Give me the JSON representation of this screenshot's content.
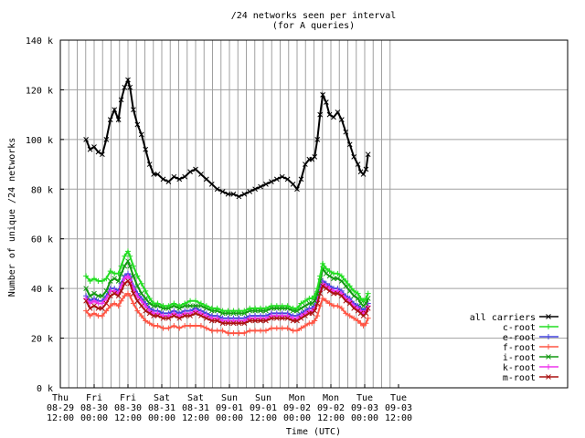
{
  "chart_data": {
    "type": "line",
    "title": "/24 networks seen per interval",
    "subtitle": "(for A queries)",
    "xlabel": "Time (UTC)",
    "ylabel": "Number of unique /24 networks",
    "ylim": [
      0,
      140000
    ],
    "xlim": [
      0,
      7.5
    ],
    "grid": true,
    "legend_position": "bottom-right",
    "y_ticks": [
      {
        "value": 0,
        "label": "0 k"
      },
      {
        "value": 20000,
        "label": "20 k"
      },
      {
        "value": 40000,
        "label": "40 k"
      },
      {
        "value": 60000,
        "label": "60 k"
      },
      {
        "value": 80000,
        "label": "80 k"
      },
      {
        "value": 100000,
        "label": "100 k"
      },
      {
        "value": 120000,
        "label": "120 k"
      },
      {
        "value": 140000,
        "label": "140 k"
      }
    ],
    "x_ticks": [
      {
        "value": 0,
        "lines": [
          "Thu",
          "08-29",
          "12:00"
        ]
      },
      {
        "value": 0.5,
        "lines": [
          "Fri",
          "08-30",
          "00:00"
        ]
      },
      {
        "value": 1,
        "lines": [
          "Fri",
          "08-30",
          "12:00"
        ]
      },
      {
        "value": 1.5,
        "lines": [
          "Sat",
          "08-31",
          "00:00"
        ]
      },
      {
        "value": 2,
        "lines": [
          "Sat",
          "08-31",
          "12:00"
        ]
      },
      {
        "value": 2.5,
        "lines": [
          "Sun",
          "09-01",
          "00:00"
        ]
      },
      {
        "value": 3,
        "lines": [
          "Sun",
          "09-01",
          "12:00"
        ]
      },
      {
        "value": 3.5,
        "lines": [
          "Mon",
          "09-02",
          "00:00"
        ]
      },
      {
        "value": 4,
        "lines": [
          "Mon",
          "09-02",
          "12:00"
        ]
      },
      {
        "value": 4.5,
        "lines": [
          "Tue",
          "09-03",
          "00:00"
        ]
      },
      {
        "value": 5,
        "lines": [
          "Tue",
          "09-03",
          "12:00"
        ]
      }
    ],
    "x": [
      0.38,
      0.44,
      0.5,
      0.56,
      0.62,
      0.68,
      0.74,
      0.8,
      0.86,
      0.9,
      0.95,
      1.0,
      1.03,
      1.08,
      1.14,
      1.2,
      1.26,
      1.32,
      1.38,
      1.44,
      1.52,
      1.6,
      1.68,
      1.76,
      1.84,
      1.92,
      2.0,
      2.08,
      2.16,
      2.24,
      2.32,
      2.4,
      2.48,
      2.56,
      2.64,
      2.72,
      2.8,
      2.88,
      2.96,
      3.04,
      3.12,
      3.2,
      3.28,
      3.36,
      3.44,
      3.5,
      3.56,
      3.62,
      3.68,
      3.72,
      3.76,
      3.8,
      3.84,
      3.88,
      3.93,
      3.98,
      4.04,
      4.1,
      4.16,
      4.22,
      4.28,
      4.34,
      4.4,
      4.44,
      4.48,
      4.52,
      4.55
    ],
    "series": [
      {
        "name": "all carriers",
        "color": "#000000",
        "marker": "cross",
        "values": [
          100000,
          96000,
          97000,
          95000,
          94000,
          100000,
          108000,
          112000,
          108000,
          116000,
          121000,
          124000,
          121000,
          112000,
          106000,
          102000,
          96000,
          90000,
          86000,
          86000,
          84000,
          83000,
          85000,
          84000,
          85000,
          87000,
          88000,
          86000,
          84000,
          82000,
          80000,
          79000,
          78000,
          78000,
          77000,
          78000,
          79000,
          80000,
          81000,
          82000,
          83000,
          84000,
          85000,
          84000,
          82000,
          80000,
          84000,
          90000,
          92000,
          92000,
          93000,
          100000,
          110000,
          118000,
          115000,
          110000,
          109000,
          111000,
          108000,
          103000,
          98000,
          93000,
          90000,
          87000,
          86000,
          88000,
          94000
        ]
      },
      {
        "name": "c-root",
        "color": "#22dd22",
        "marker": "plus",
        "values": [
          45000,
          43000,
          44000,
          43000,
          43000,
          44000,
          47000,
          46000,
          46000,
          49000,
          53000,
          55000,
          53000,
          49000,
          45000,
          42000,
          39000,
          36000,
          34000,
          34000,
          33000,
          33000,
          34000,
          33000,
          34000,
          35000,
          35000,
          34000,
          33000,
          32000,
          32000,
          31000,
          31000,
          31000,
          31000,
          31000,
          32000,
          32000,
          32000,
          32000,
          33000,
          33000,
          33000,
          33000,
          32000,
          32000,
          34000,
          35000,
          36000,
          36000,
          37000,
          40000,
          45000,
          50000,
          48000,
          47000,
          46000,
          46000,
          45000,
          43000,
          41000,
          39000,
          38000,
          36000,
          35000,
          36000,
          38000
        ]
      },
      {
        "name": "e-root",
        "color": "#4444dd",
        "marker": "plus",
        "values": [
          37000,
          35000,
          36000,
          35000,
          35000,
          37000,
          40000,
          40000,
          39000,
          42000,
          45000,
          46000,
          45000,
          41000,
          38000,
          36000,
          34000,
          32000,
          31000,
          31000,
          30000,
          30000,
          31000,
          30000,
          31000,
          31000,
          32000,
          31000,
          30000,
          29000,
          29000,
          28000,
          28000,
          28000,
          28000,
          28000,
          29000,
          29000,
          29000,
          29000,
          30000,
          30000,
          30000,
          30000,
          29000,
          29000,
          30000,
          31000,
          32000,
          32000,
          33000,
          36000,
          40000,
          43000,
          42000,
          41000,
          40000,
          40000,
          39000,
          37000,
          36000,
          34000,
          33000,
          32000,
          31000,
          32000,
          34000
        ]
      },
      {
        "name": "f-root",
        "color": "#ff5544",
        "marker": "plus",
        "values": [
          31000,
          29000,
          30000,
          29000,
          29000,
          31000,
          33000,
          34000,
          33000,
          35000,
          37000,
          38000,
          37000,
          34000,
          31000,
          29000,
          27000,
          26000,
          25000,
          25000,
          24000,
          24000,
          25000,
          24000,
          25000,
          25000,
          25000,
          25000,
          24000,
          23000,
          23000,
          23000,
          22000,
          22000,
          22000,
          22000,
          23000,
          23000,
          23000,
          23000,
          24000,
          24000,
          24000,
          24000,
          23000,
          23000,
          24000,
          25000,
          26000,
          26000,
          27000,
          29000,
          33000,
          36000,
          35000,
          34000,
          33000,
          33000,
          32000,
          30000,
          29000,
          28000,
          27000,
          26000,
          25000,
          26000,
          28000
        ]
      },
      {
        "name": "i-root",
        "color": "#119911",
        "marker": "cross",
        "values": [
          40000,
          37000,
          38000,
          37000,
          37000,
          39000,
          43000,
          44000,
          43000,
          46000,
          49000,
          51000,
          49000,
          45000,
          41000,
          38000,
          36000,
          34000,
          33000,
          33000,
          32000,
          32000,
          33000,
          32000,
          33000,
          33000,
          33000,
          33000,
          32000,
          31000,
          31000,
          30000,
          30000,
          30000,
          30000,
          30000,
          31000,
          31000,
          31000,
          31000,
          32000,
          32000,
          32000,
          32000,
          31000,
          31000,
          32000,
          33000,
          34000,
          34000,
          35000,
          38000,
          43000,
          48000,
          46000,
          45000,
          44000,
          44000,
          43000,
          41000,
          39000,
          37000,
          36000,
          34000,
          33000,
          34000,
          36000
        ]
      },
      {
        "name": "k-root",
        "color": "#ee33ee",
        "marker": "plus",
        "values": [
          36000,
          34000,
          35000,
          34000,
          34000,
          36000,
          39000,
          39000,
          38000,
          41000,
          44000,
          45000,
          44000,
          40000,
          37000,
          35000,
          33000,
          31000,
          30000,
          30000,
          29000,
          29000,
          30000,
          29000,
          30000,
          30000,
          31000,
          30000,
          29000,
          28000,
          28000,
          27000,
          27000,
          27000,
          27000,
          27000,
          28000,
          28000,
          28000,
          28000,
          29000,
          29000,
          29000,
          29000,
          28000,
          28000,
          29000,
          30000,
          31000,
          31000,
          32000,
          35000,
          39000,
          42000,
          41000,
          40000,
          39000,
          39000,
          38000,
          36000,
          35000,
          33000,
          32000,
          31000,
          30000,
          31000,
          33000
        ]
      },
      {
        "name": "m-root",
        "color": "#aa1111",
        "marker": "cross",
        "values": [
          35000,
          32000,
          33000,
          32000,
          32000,
          34000,
          37000,
          38000,
          37000,
          39000,
          42000,
          43000,
          42000,
          38000,
          35000,
          33000,
          31000,
          30000,
          29000,
          29000,
          28000,
          28000,
          29000,
          28000,
          29000,
          29000,
          30000,
          29000,
          28000,
          27000,
          27000,
          26000,
          26000,
          26000,
          26000,
          26000,
          27000,
          27000,
          27000,
          27000,
          28000,
          28000,
          28000,
          28000,
          27000,
          27000,
          28000,
          29000,
          30000,
          30000,
          31000,
          34000,
          38000,
          41000,
          40000,
          39000,
          38000,
          38000,
          37000,
          35000,
          34000,
          32000,
          31000,
          30000,
          29000,
          30000,
          32000
        ]
      }
    ]
  }
}
